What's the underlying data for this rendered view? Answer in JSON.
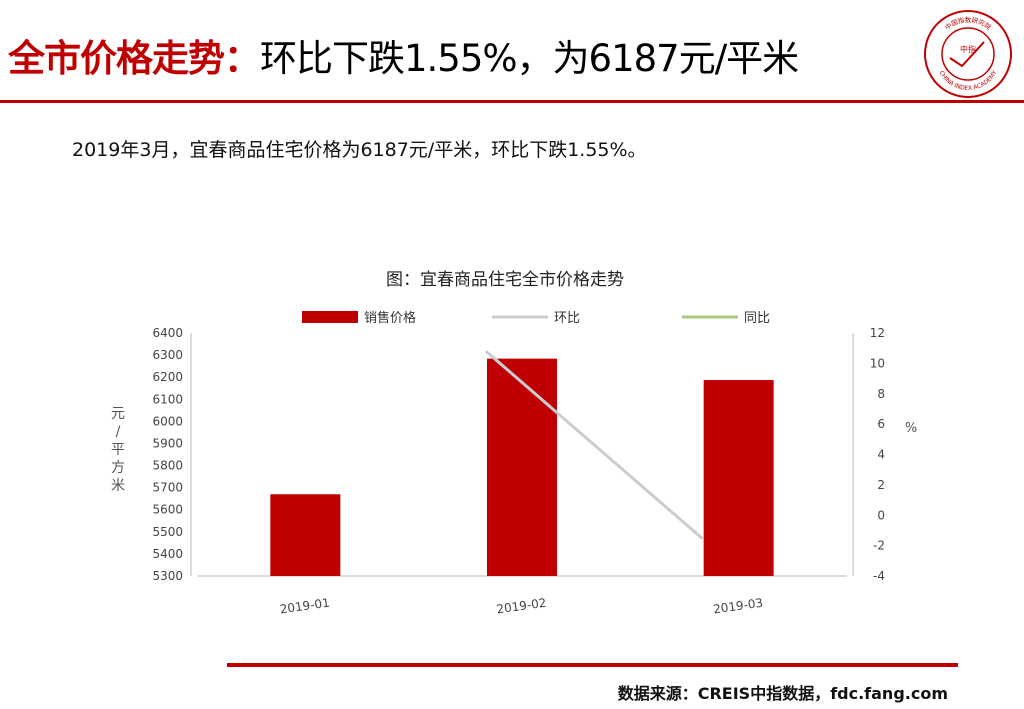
{
  "header": {
    "title_highlight": "全市价格走势：",
    "title_rest": "环比下跌1.55%，为6187元/平米",
    "logo_text": "CHINA INDEX ACADEMY",
    "logo_seal": "中指",
    "logo_top": "中国指数研究院"
  },
  "summary": "2019年3月，宜春商品住宅价格为6187元/平米，环比下跌1.55%。",
  "source": "数据来源：CREIS中指数据，fdc.fang.com",
  "colors": {
    "accent": "#c00000",
    "mom_line": "#c8cdd2",
    "yoy_line": "#a9c97e"
  },
  "chart_data": {
    "type": "bar",
    "title": "图：宜春商品住宅全市价格走势",
    "categories": [
      "2019-01",
      "2019-02",
      "2019-03"
    ],
    "series": [
      {
        "name": "销售价格",
        "type": "bar",
        "axis": "left",
        "values": [
          5670,
          6284,
          6187
        ]
      },
      {
        "name": "环比",
        "type": "line",
        "axis": "right",
        "values": [
          null,
          10.8,
          -1.55
        ]
      },
      {
        "name": "同比",
        "type": "line",
        "axis": "right",
        "values": [
          null,
          null,
          null
        ]
      }
    ],
    "ylabel": "元/平方米",
    "ylabel_right": "%",
    "ylim": [
      5300,
      6400
    ],
    "yticks": [
      5300,
      5400,
      5500,
      5600,
      5700,
      5800,
      5900,
      6000,
      6100,
      6200,
      6300,
      6400
    ],
    "ylim_right": [
      -4,
      12
    ],
    "yticks_right": [
      -4,
      -2,
      0,
      2,
      4,
      6,
      8,
      10,
      12
    ],
    "legend": "top",
    "grid": false
  }
}
